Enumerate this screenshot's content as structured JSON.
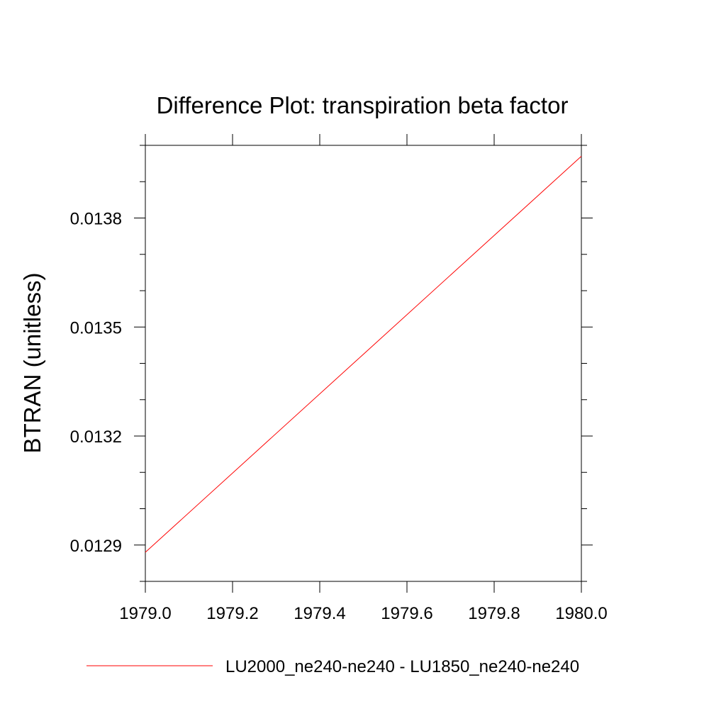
{
  "chart_data": {
    "type": "line",
    "title": "Difference Plot: transpiration beta factor",
    "xlabel": "",
    "ylabel": "BTRAN  (unitless)",
    "xlim": [
      1979.0,
      1980.0
    ],
    "ylim": [
      0.0128,
      0.014
    ],
    "xticks": [
      1979.0,
      1979.2,
      1979.4,
      1979.6,
      1979.8,
      1980.0
    ],
    "xtick_labels": [
      "1979.0",
      "1979.2",
      "1979.4",
      "1979.6",
      "1979.8",
      "1980.0"
    ],
    "yticks": [
      0.0129,
      0.0132,
      0.0135,
      0.0138
    ],
    "ytick_labels": [
      "0.0129",
      "0.0132",
      "0.0135",
      "0.0138"
    ],
    "y_minor_step": 0.0001,
    "grid": false,
    "legend_position": "bottom",
    "series": [
      {
        "name": "LU2000_ne240-ne240 - LU1850_ne240-ne240",
        "color": "#ff0000",
        "x": [
          1979.0,
          1980.0
        ],
        "y": [
          0.01288,
          0.01397
        ]
      }
    ]
  }
}
